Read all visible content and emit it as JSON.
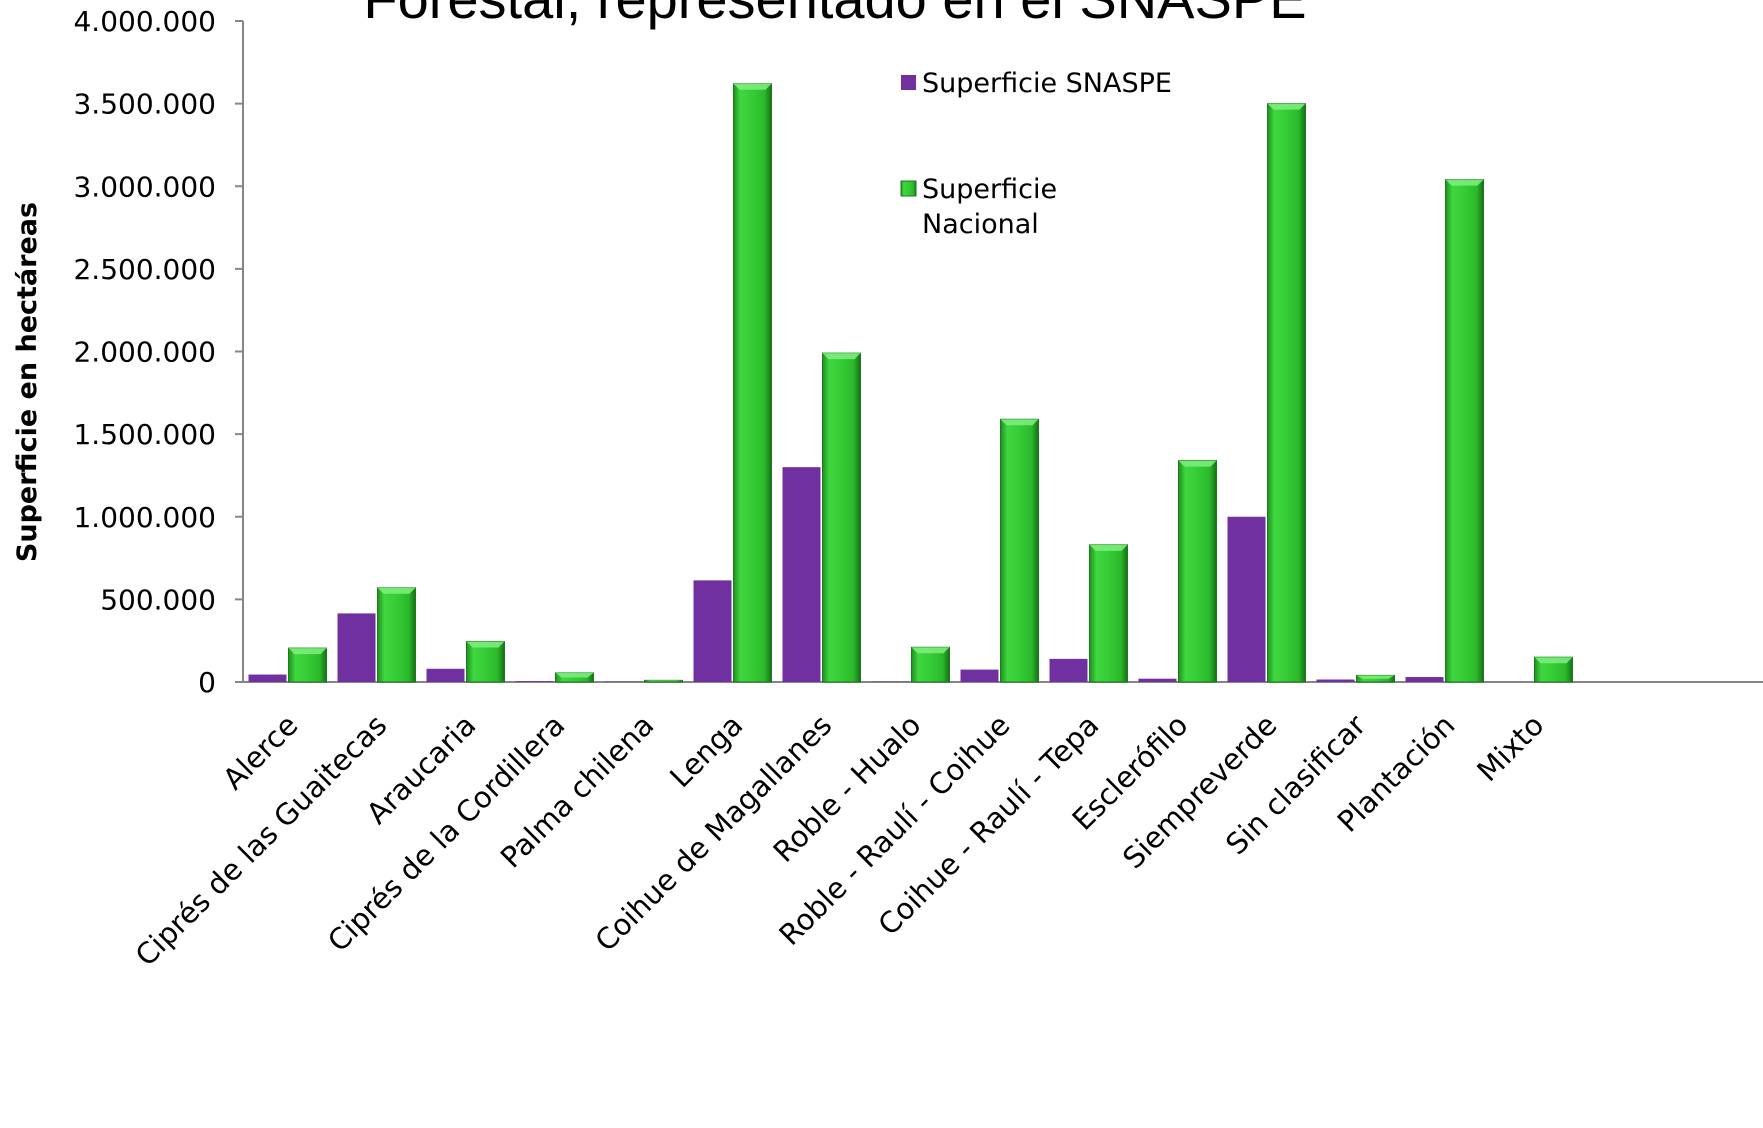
{
  "chart_data": {
    "type": "bar",
    "title": "Forestal, representado en el SNASPE",
    "xlabel": "",
    "ylabel": "Superficie en hectáreas",
    "ylim": [
      0,
      4000000
    ],
    "yticks": [
      0,
      500000,
      1000000,
      1500000,
      2000000,
      2500000,
      3000000,
      3500000,
      4000000
    ],
    "ytick_labels": [
      "0",
      "500.000",
      "1.000.000",
      "1.500.000",
      "2.000.000",
      "2.500.000",
      "3.000.000",
      "3.500.000",
      "4.000.000"
    ],
    "categories": [
      "Alerce",
      "Ciprés de las Guaitecas",
      "Araucaria",
      "Ciprés de la Cordillera",
      "Palma chilena",
      "Lenga",
      "Coihue de Magallanes",
      "Roble - Hualo",
      "Roble - Raulí - Coihue",
      "Coihue - Raulí - Tepa",
      "Esclerófilo",
      "Siempreverde",
      "Sin clasificar",
      "Plantación",
      "Mixto"
    ],
    "series": [
      {
        "name": "Superficie SNASPE",
        "color": "#7030a0",
        "values": [
          45000,
          415000,
          80000,
          5000,
          2000,
          615000,
          1300000,
          2000,
          75000,
          140000,
          20000,
          1000000,
          15000,
          30000,
          0
        ]
      },
      {
        "name": "Superficie Nacional",
        "color": "#2ec42e",
        "values": [
          205000,
          570000,
          245000,
          55000,
          10000,
          3620000,
          1990000,
          210000,
          1590000,
          830000,
          1340000,
          3500000,
          40000,
          3040000,
          150000
        ]
      }
    ],
    "grid": false,
    "legend_position": "top-right"
  }
}
